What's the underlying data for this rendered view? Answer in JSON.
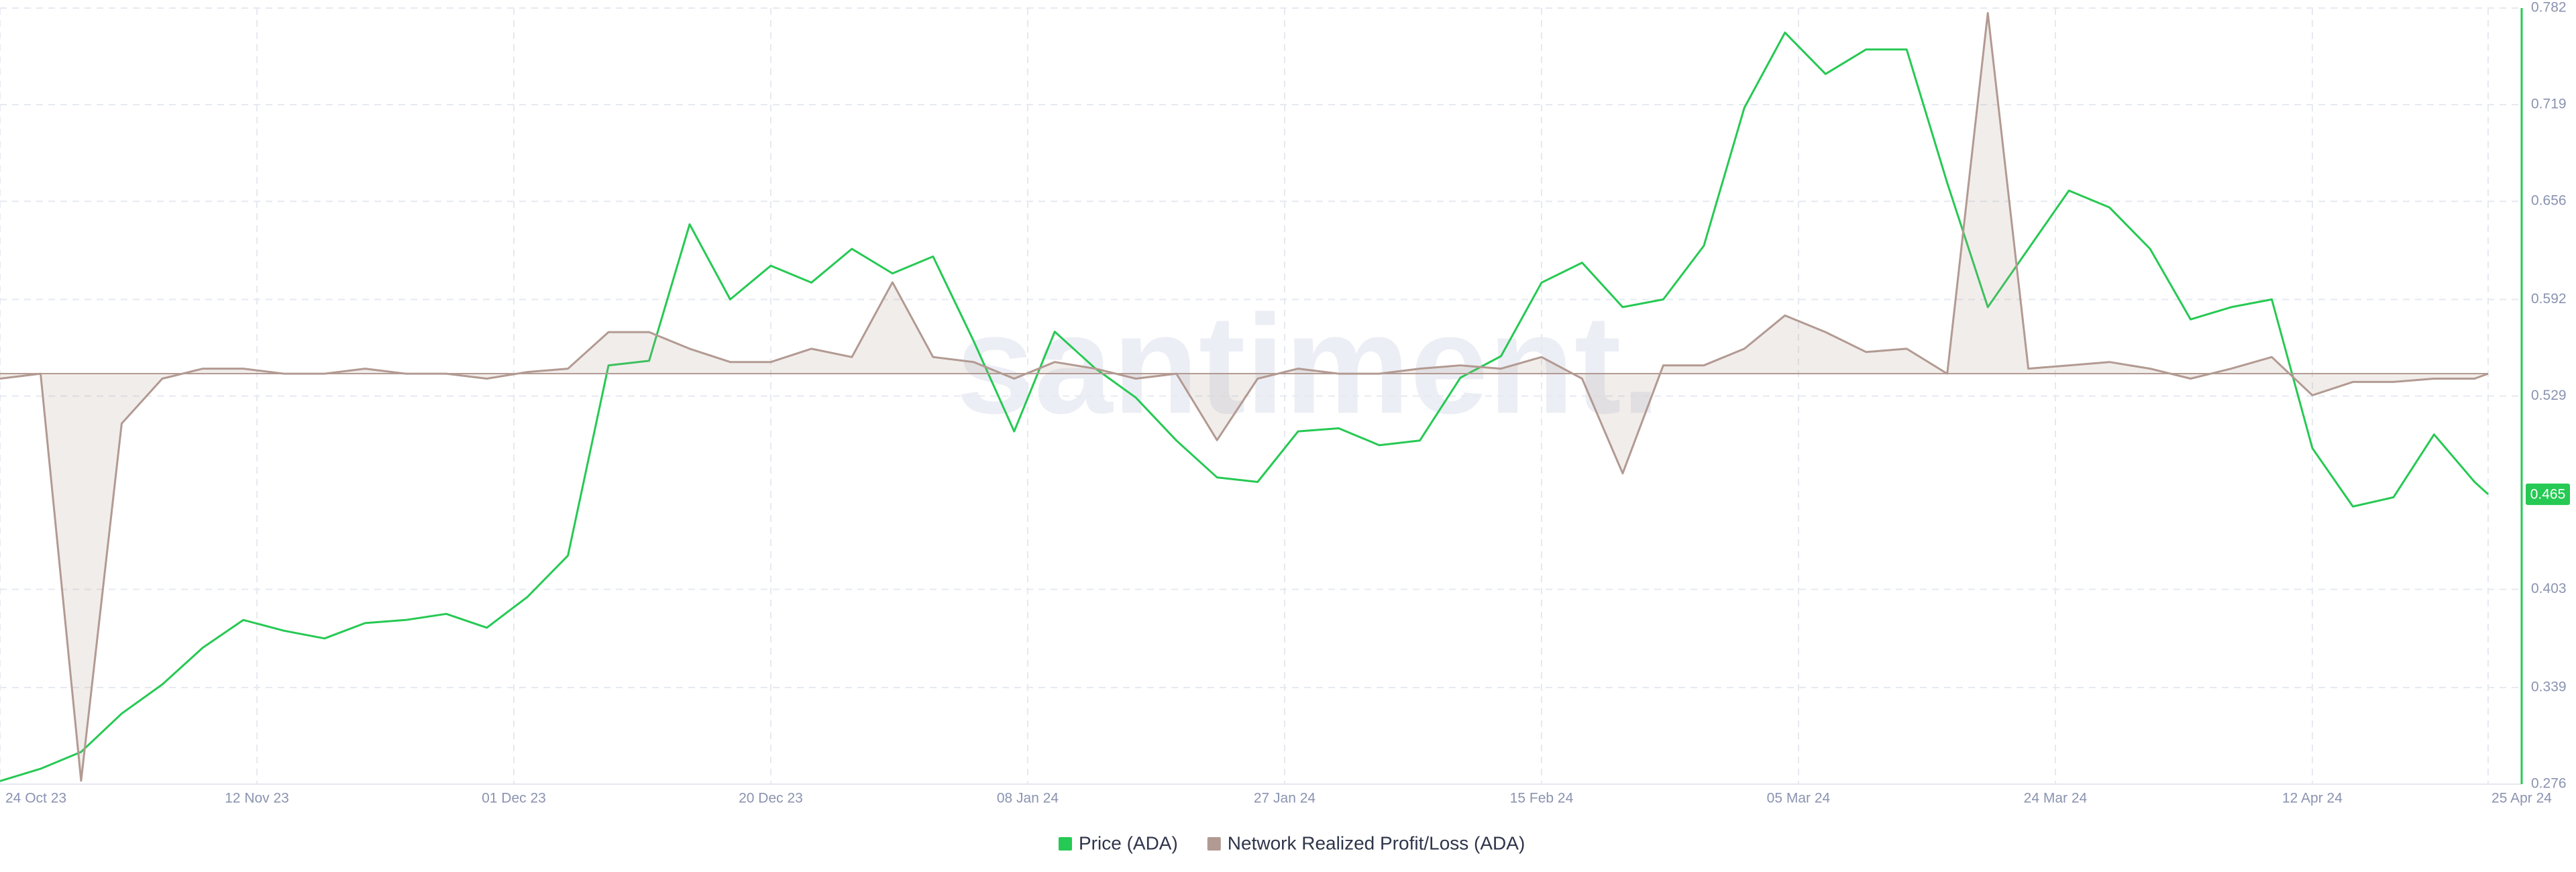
{
  "chart_data": {
    "type": "line",
    "watermark": "santiment.",
    "x": [
      "2023-10-24",
      "2023-10-27",
      "2023-10-30",
      "2023-11-02",
      "2023-11-05",
      "2023-11-08",
      "2023-11-11",
      "2023-11-14",
      "2023-11-17",
      "2023-11-20",
      "2023-11-23",
      "2023-11-26",
      "2023-11-29",
      "2023-12-02",
      "2023-12-05",
      "2023-12-08",
      "2023-12-11",
      "2023-12-14",
      "2023-12-17",
      "2023-12-20",
      "2023-12-23",
      "2023-12-26",
      "2023-12-29",
      "2024-01-01",
      "2024-01-04",
      "2024-01-07",
      "2024-01-10",
      "2024-01-13",
      "2024-01-16",
      "2024-01-19",
      "2024-01-22",
      "2024-01-25",
      "2024-01-28",
      "2024-01-31",
      "2024-02-03",
      "2024-02-06",
      "2024-02-09",
      "2024-02-12",
      "2024-02-15",
      "2024-02-18",
      "2024-02-21",
      "2024-02-24",
      "2024-02-27",
      "2024-03-01",
      "2024-03-04",
      "2024-03-07",
      "2024-03-10",
      "2024-03-13",
      "2024-03-16",
      "2024-03-19",
      "2024-03-22",
      "2024-03-25",
      "2024-03-28",
      "2024-03-31",
      "2024-04-03",
      "2024-04-06",
      "2024-04-09",
      "2024-04-12",
      "2024-04-15",
      "2024-04-18",
      "2024-04-21",
      "2024-04-24",
      "2024-04-25"
    ],
    "xlim": [
      "2023-10-24",
      "2024-04-25"
    ],
    "xticks": [
      {
        "value": "2023-10-24",
        "label": "24 Oct 23"
      },
      {
        "value": "2023-11-12",
        "label": "12 Nov 23"
      },
      {
        "value": "2023-12-01",
        "label": "01 Dec 23"
      },
      {
        "value": "2023-12-20",
        "label": "20 Dec 23"
      },
      {
        "value": "2024-01-08",
        "label": "08 Jan 24"
      },
      {
        "value": "2024-01-27",
        "label": "27 Jan 24"
      },
      {
        "value": "2024-02-15",
        "label": "15 Feb 24"
      },
      {
        "value": "2024-03-05",
        "label": "05 Mar 24"
      },
      {
        "value": "2024-03-24",
        "label": "24 Mar 24"
      },
      {
        "value": "2024-04-12",
        "label": "12 Apr 24"
      },
      {
        "value": "2024-04-25",
        "label": "25 Apr 24"
      }
    ],
    "ylim": [
      0.276,
      0.782
    ],
    "yticks": [
      0.276,
      0.339,
      0.403,
      0.529,
      0.592,
      0.656,
      0.719,
      0.782
    ],
    "y2lim": [
      -247,
      220
    ],
    "grid": true,
    "legend": "bottom",
    "series": [
      {
        "name": "Price (ADA)",
        "color": "#26c953",
        "values": [
          0.278,
          0.286,
          0.297,
          0.322,
          0.341,
          0.365,
          0.383,
          0.376,
          0.371,
          0.381,
          0.383,
          0.387,
          0.378,
          0.398,
          0.425,
          0.549,
          0.552,
          0.641,
          0.592,
          0.614,
          0.603,
          0.625,
          0.609,
          0.62,
          0.565,
          0.506,
          0.571,
          0.547,
          0.528,
          0.5,
          0.476,
          0.473,
          0.506,
          0.508,
          0.497,
          0.5,
          0.541,
          0.555,
          0.603,
          0.616,
          0.587,
          0.592,
          0.627,
          0.717,
          0.766,
          0.739,
          0.755,
          0.755,
          0.668,
          0.587,
          0.625,
          0.663,
          0.652,
          0.625,
          0.579,
          0.587,
          0.592,
          0.495,
          0.457,
          0.463,
          0.504,
          0.473,
          0.465
        ]
      },
      {
        "name": "Network Realized Profit/Loss (ADA)",
        "color": "#b29a92",
        "axis": "y2",
        "values": [
          -3,
          0,
          -245,
          -30,
          -3,
          3,
          3,
          0,
          0,
          3,
          0,
          0,
          -3,
          1,
          3,
          25,
          25,
          15,
          7,
          7,
          15,
          10,
          55,
          10,
          7,
          -3,
          7,
          3,
          -3,
          0,
          -40,
          -3,
          3,
          0,
          0,
          3,
          5,
          3,
          10,
          -3,
          -60,
          5,
          5,
          15,
          35,
          25,
          13,
          15,
          0,
          217,
          3,
          5,
          7,
          3,
          -3,
          3,
          10,
          -13,
          -5,
          -5,
          -3,
          -3,
          0
        ]
      }
    ]
  }
}
